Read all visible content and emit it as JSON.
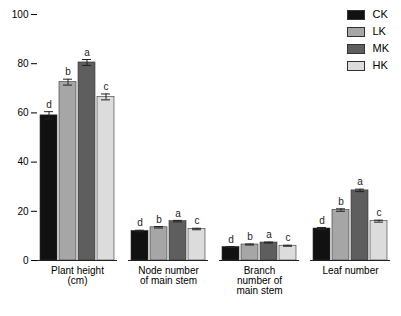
{
  "chart_data": {
    "type": "bar",
    "categories": [
      "Plant height (cm)",
      "Node number of main stem",
      "Branch number of main stem",
      "Leaf number"
    ],
    "series": [
      {
        "name": "CK",
        "color": "#111111",
        "values": [
          59,
          12,
          5.5,
          13
        ],
        "errors": [
          1.5,
          0.3,
          0.2,
          0.4
        ],
        "letters": [
          "d",
          "d",
          "d",
          "d"
        ]
      },
      {
        "name": "LK",
        "color": "#a6a6a6",
        "values": [
          72.5,
          13.5,
          6.5,
          20.5
        ],
        "errors": [
          1.2,
          0.3,
          0.2,
          0.5
        ],
        "letters": [
          "b",
          "b",
          "b",
          "b"
        ]
      },
      {
        "name": "MK",
        "color": "#5e5e5e",
        "values": [
          80.5,
          16,
          7.3,
          28.5
        ],
        "errors": [
          1.2,
          0.3,
          0.2,
          0.5
        ],
        "letters": [
          "a",
          "a",
          "a",
          "a"
        ]
      },
      {
        "name": "HK",
        "color": "#dcdcdc",
        "values": [
          66.5,
          12.8,
          6,
          16
        ],
        "errors": [
          1.2,
          0.3,
          0.2,
          0.4
        ],
        "letters": [
          "c",
          "c",
          "c",
          "c"
        ]
      }
    ],
    "ylim": [
      0,
      100
    ],
    "yticks": [
      0,
      20,
      40,
      60,
      80,
      100
    ],
    "legend": "top-right"
  }
}
